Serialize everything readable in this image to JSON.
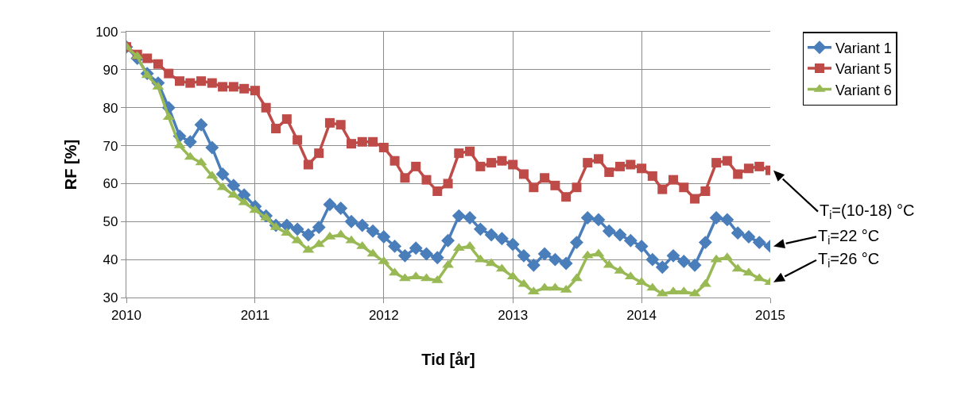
{
  "chart_data": {
    "type": "line",
    "xlabel": "Tid [år]",
    "ylabel": "RF [%]",
    "x": [
      "2010-01",
      "2010-02",
      "2010-03",
      "2010-04",
      "2010-05",
      "2010-06",
      "2010-07",
      "2010-08",
      "2010-09",
      "2010-10",
      "2010-11",
      "2010-12",
      "2011-01",
      "2011-02",
      "2011-03",
      "2011-04",
      "2011-05",
      "2011-06",
      "2011-07",
      "2011-08",
      "2011-09",
      "2011-10",
      "2011-11",
      "2011-12",
      "2012-01",
      "2012-02",
      "2012-03",
      "2012-04",
      "2012-05",
      "2012-06",
      "2012-07",
      "2012-08",
      "2012-09",
      "2012-10",
      "2012-11",
      "2012-12",
      "2013-01",
      "2013-02",
      "2013-03",
      "2013-04",
      "2013-05",
      "2013-06",
      "2013-07",
      "2013-08",
      "2013-09",
      "2013-10",
      "2013-11",
      "2013-12",
      "2014-01",
      "2014-02",
      "2014-03",
      "2014-04",
      "2014-05",
      "2014-06",
      "2014-07",
      "2014-08",
      "2014-09",
      "2014-10",
      "2014-11",
      "2014-12",
      "2015-01"
    ],
    "series": [
      {
        "name": "Variant 1",
        "color": "#4a7ebb",
        "marker": "diamond",
        "values": [
          96,
          93,
          89,
          86.5,
          80,
          72.5,
          71,
          75.5,
          69.5,
          62.5,
          59.5,
          57,
          54,
          51.5,
          49,
          49,
          48,
          46.5,
          48.5,
          54.5,
          53.5,
          50,
          49,
          47.5,
          46,
          43.5,
          41,
          43,
          41.5,
          40.5,
          45,
          51.5,
          51,
          48,
          46.5,
          45.5,
          44,
          41,
          38.5,
          41.5,
          40,
          39,
          44.5,
          51,
          50.5,
          47.5,
          46.5,
          45,
          43.5,
          40,
          38,
          41,
          39.5,
          38.5,
          44.5,
          51,
          50.5,
          47,
          46,
          44.5,
          43.5
        ]
      },
      {
        "name": "Variant 5",
        "color": "#be4b48",
        "marker": "square",
        "values": [
          96,
          94,
          93,
          91.5,
          89,
          87,
          86.5,
          87,
          86.5,
          85.5,
          85.5,
          85,
          84.5,
          80,
          74.5,
          77,
          71.5,
          65,
          68,
          76,
          75.5,
          70.5,
          71,
          71,
          69.5,
          66,
          61.5,
          64.5,
          61,
          58,
          60,
          68,
          68.5,
          64.5,
          65.5,
          66,
          65,
          62.5,
          59,
          61.5,
          59.5,
          56.5,
          59,
          65.5,
          66.5,
          63,
          64.5,
          65,
          64,
          62,
          58.5,
          61,
          59,
          56,
          58,
          65.5,
          66,
          62.5,
          64,
          64.5,
          63.5
        ]
      },
      {
        "name": "Variant 6",
        "color": "#98b954",
        "marker": "triangle",
        "values": [
          96,
          93.5,
          88.5,
          85.5,
          77.5,
          70,
          67,
          65.5,
          62,
          59,
          57,
          55,
          53,
          51,
          48.5,
          47,
          45,
          42.5,
          44,
          46,
          46.5,
          45,
          43.5,
          41.5,
          39.5,
          36.5,
          35,
          35.5,
          35,
          34.5,
          38.5,
          43,
          43.5,
          40,
          39,
          37.5,
          35.5,
          33.5,
          31.5,
          32.5,
          32.5,
          32,
          35,
          41,
          41.5,
          38.5,
          37,
          35.5,
          34,
          32.5,
          31,
          31.5,
          31.5,
          31,
          33.5,
          40,
          40.5,
          37.5,
          36.5,
          35,
          34
        ]
      }
    ],
    "xlim": [
      "2010-01",
      "2015-01"
    ],
    "xticks": [
      {
        "value": "2010-01",
        "label": "2010"
      },
      {
        "value": "2011-01",
        "label": "2011"
      },
      {
        "value": "2012-01",
        "label": "2012"
      },
      {
        "value": "2013-01",
        "label": "2013"
      },
      {
        "value": "2014-01",
        "label": "2014"
      },
      {
        "value": "2015-01",
        "label": "2015"
      }
    ],
    "ylim": [
      30,
      100
    ],
    "yticks": [
      30,
      40,
      50,
      60,
      70,
      80,
      90,
      100
    ],
    "grid": true,
    "legend": "top right",
    "line_style": "solid",
    "annotations": [
      {
        "text": "T$_{i}$=(10-18) °C",
        "x": "2015-01",
        "y": 63.5
      },
      {
        "text": "T$_{i}$=22 °C",
        "x": "2015-01",
        "y": 43.5
      },
      {
        "text": "T$_{i}$=26 °C",
        "x": "2015-01",
        "y": 34
      }
    ]
  }
}
